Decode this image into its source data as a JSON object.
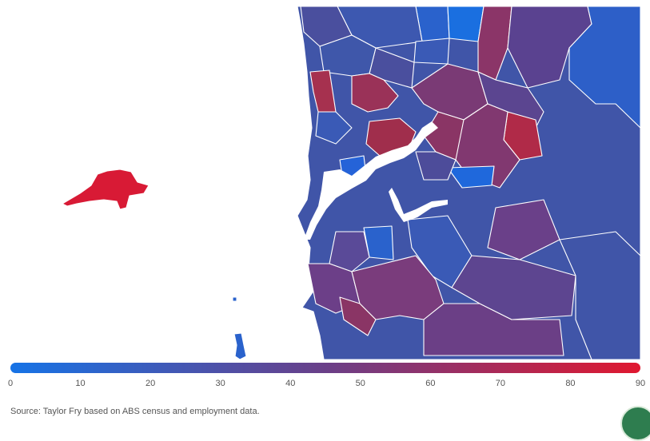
{
  "legend": {
    "ticks": [
      "0",
      "10",
      "20",
      "30",
      "40",
      "50",
      "60",
      "70",
      "80",
      "90"
    ],
    "min": 0,
    "max": 90,
    "color_low": "#1673e6",
    "color_mid": "#6a3f88",
    "color_high": "#e0182f"
  },
  "source": "Source: Taylor Fry based on ABS census and employment data.",
  "colors": {
    "water": "#ffffff",
    "region_border": "#ffffff"
  }
}
